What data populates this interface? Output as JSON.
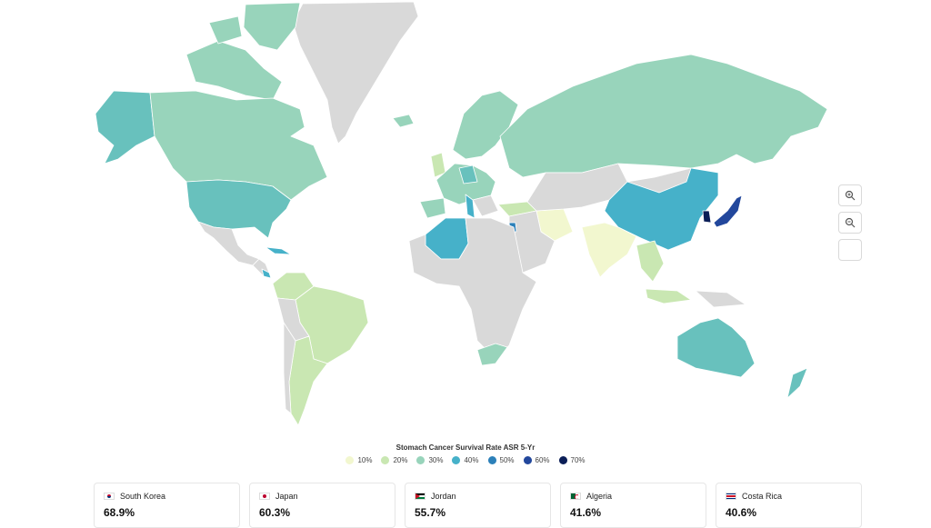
{
  "legend": {
    "title": "Stomach Cancer Survival Rate ASR 5-Yr",
    "items": [
      {
        "label": "10%",
        "color": "#f2f7cf"
      },
      {
        "label": "20%",
        "color": "#c9e7b2"
      },
      {
        "label": "30%",
        "color": "#98d4bb"
      },
      {
        "label": "40%",
        "color": "#46b1c9"
      },
      {
        "label": "50%",
        "color": "#2c80b9"
      },
      {
        "label": "60%",
        "color": "#22479c"
      },
      {
        "label": "70%",
        "color": "#0b1e57"
      }
    ]
  },
  "controls": {
    "zoom_in_icon": "zoom-in-icon",
    "zoom_out_icon": "zoom-out-icon",
    "fullscreen_icon": "fullscreen-icon"
  },
  "cards": [
    {
      "country": "South Korea",
      "value": "68.9%"
    },
    {
      "country": "Japan",
      "value": "60.3%"
    },
    {
      "country": "Jordan",
      "value": "55.7%"
    },
    {
      "country": "Algeria",
      "value": "41.6%"
    },
    {
      "country": "Costa Rica",
      "value": "40.6%"
    }
  ],
  "colors": {
    "no_data": "#d9d9d9",
    "land_light": "#98d4bb",
    "land_teal": "#68c1bd"
  }
}
